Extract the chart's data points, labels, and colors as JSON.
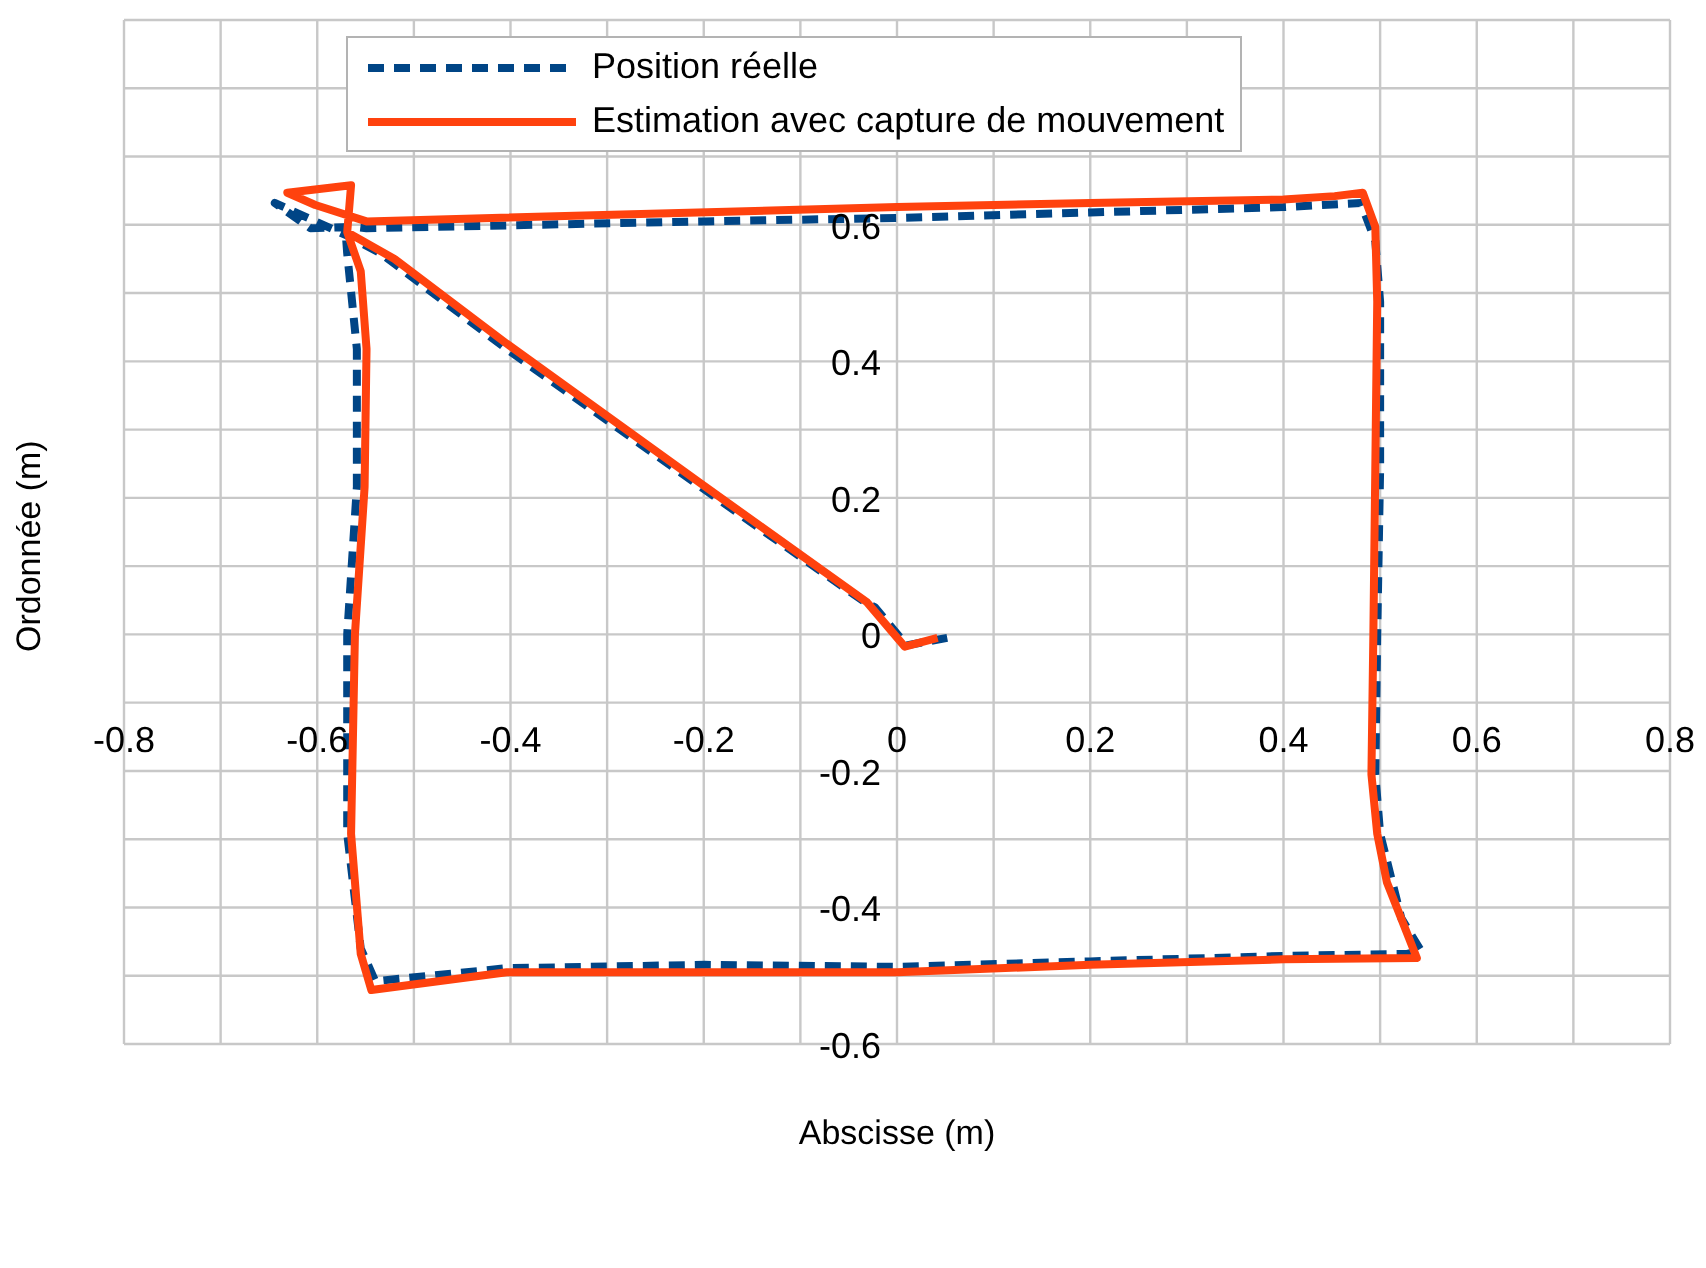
{
  "chart_data": {
    "type": "line",
    "xlabel": "Abscisse (m)",
    "ylabel": "Ordonnée (m)",
    "xlim": [
      -0.8,
      0.8
    ],
    "ylim": [
      -0.6,
      0.9
    ],
    "xticks": [
      -0.8,
      {
        "value": -0.7,
        "label": null
      },
      -0.6,
      {
        "value": -0.5,
        "label": null
      },
      -0.4,
      {
        "value": -0.3,
        "label": null
      },
      -0.2,
      {
        "value": -0.1,
        "label": null
      },
      0,
      {
        "value": 0.1,
        "label": null
      },
      0.2,
      {
        "value": 0.3,
        "label": null
      },
      0.4,
      {
        "value": 0.5,
        "label": null
      },
      0.6,
      {
        "value": 0.7,
        "label": null
      },
      0.8
    ],
    "yticks": [
      -0.6,
      {
        "value": -0.5,
        "label": null
      },
      -0.4,
      {
        "value": -0.3,
        "label": null
      },
      -0.2,
      {
        "value": -0.1,
        "label": null
      },
      0,
      {
        "value": 0.1,
        "label": null
      },
      0.2,
      {
        "value": 0.3,
        "label": null
      },
      0.4,
      {
        "value": 0.5,
        "label": null
      },
      0.6,
      {
        "value": 0.7,
        "label": null
      },
      {
        "value": 0.8,
        "label": null
      },
      {
        "value": 0.9,
        "label": null
      }
    ],
    "grid": true,
    "legend": "top",
    "marker": "none",
    "series": [
      {
        "name": "Position réelle",
        "color": "#004586",
        "line_style": "dashed",
        "x": [
          0.052,
          0.01,
          -0.023,
          -0.031,
          -0.203,
          -0.404,
          -0.534,
          -0.569,
          -0.644,
          -0.607,
          -0.561,
          -0.549,
          -0.2,
          0,
          0.2,
          0.4,
          0.48,
          0.495,
          0.5,
          0.5,
          0.497,
          0.495,
          0.5,
          0.522,
          0.542,
          0.528,
          0.4,
          0.2,
          0,
          -0.199,
          -0.404,
          -0.54,
          -0.555,
          -0.569,
          -0.569,
          -0.559,
          -0.559,
          -0.569,
          -0.571
        ],
        "values": [
          -0.005,
          -0.016,
          0.04,
          0.045,
          0.216,
          0.418,
          0.558,
          0.584,
          0.632,
          0.595,
          0.597,
          0.595,
          0.605,
          0.61,
          0.618,
          0.626,
          0.632,
          0.576,
          0.487,
          0.242,
          0,
          -0.205,
          -0.292,
          -0.416,
          -0.463,
          -0.468,
          -0.471,
          -0.479,
          -0.487,
          -0.484,
          -0.489,
          -0.508,
          -0.46,
          -0.292,
          0,
          0.216,
          0.418,
          0.558,
          0.597
        ]
      },
      {
        "name": "Estimation avec capture de mouvement",
        "color": "#ff420e",
        "line_style": "solid",
        "x": [
          0.042,
          0.008,
          -0.031,
          -0.203,
          -0.404,
          -0.52,
          -0.569,
          -0.565,
          -0.631,
          -0.602,
          -0.549,
          0,
          0.2,
          0.4,
          0.453,
          0.482,
          0.495,
          0.497,
          0.495,
          0.493,
          0.491,
          0.497,
          0.507,
          0.538,
          0.4,
          0.2,
          0,
          -0.199,
          -0.404,
          -0.544,
          -0.555,
          -0.565,
          -0.561,
          -0.551,
          -0.549,
          -0.555,
          -0.569
        ],
        "values": [
          -0.005,
          -0.018,
          0.047,
          0.221,
          0.426,
          0.55,
          0.589,
          0.658,
          0.647,
          0.629,
          0.605,
          0.626,
          0.632,
          0.637,
          0.642,
          0.647,
          0.597,
          0.487,
          0.242,
          0,
          -0.205,
          -0.292,
          -0.363,
          -0.474,
          -0.476,
          -0.484,
          -0.495,
          -0.495,
          -0.495,
          -0.521,
          -0.468,
          -0.292,
          0,
          0.216,
          0.418,
          0.532,
          0.589
        ]
      }
    ]
  }
}
